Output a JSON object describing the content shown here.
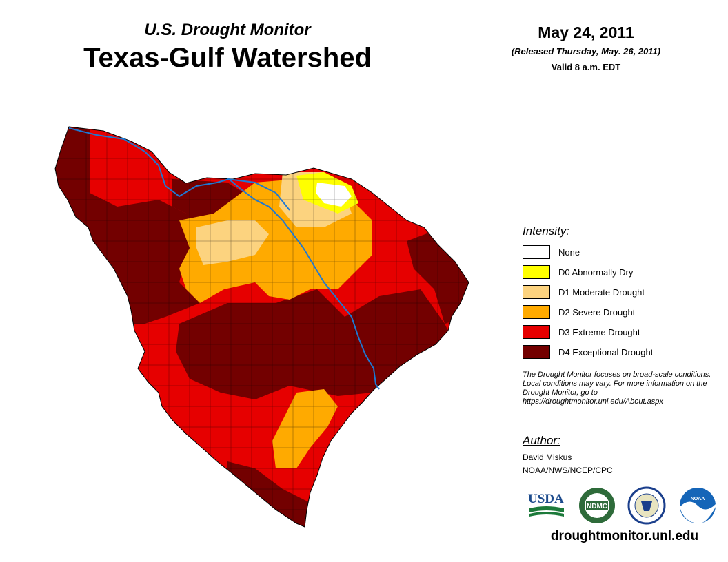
{
  "header": {
    "subtitle": "U.S. Drought Monitor",
    "title": "Texas-Gulf Watershed",
    "date": "May 24, 2011",
    "released": "(Released Thursday, May. 26, 2011)",
    "valid": "Valid 8 a.m. EDT"
  },
  "legend": {
    "heading": "Intensity:",
    "items": [
      {
        "label": "None",
        "color": "#ffffff"
      },
      {
        "label": "D0 Abnormally Dry",
        "color": "#ffff00"
      },
      {
        "label": "D1 Moderate Drought",
        "color": "#fcd37f"
      },
      {
        "label": "D2 Severe Drought",
        "color": "#ffaa00"
      },
      {
        "label": "D3 Extreme Drought",
        "color": "#e60000"
      },
      {
        "label": "D4 Exceptional Drought",
        "color": "#730000"
      }
    ]
  },
  "disclaimer": "The Drought Monitor focuses on broad-scale conditions. Local conditions may vary. For more information on the Drought Monitor, go to https://droughtmonitor.unl.edu/About.aspx",
  "author": {
    "heading": "Author:",
    "name": "David Miskus",
    "org": "NOAA/NWS/NCEP/CPC"
  },
  "logos": [
    {
      "name": "usda-logo",
      "text": "USDA"
    },
    {
      "name": "ndmc-logo",
      "text": "NDMC"
    },
    {
      "name": "commerce-logo",
      "text": ""
    },
    {
      "name": "noaa-logo",
      "text": "NOAA"
    }
  ],
  "website": "droughtmonitor.unl.edu",
  "colors": {
    "river": "#1e78d2",
    "county_line": "#000000"
  }
}
